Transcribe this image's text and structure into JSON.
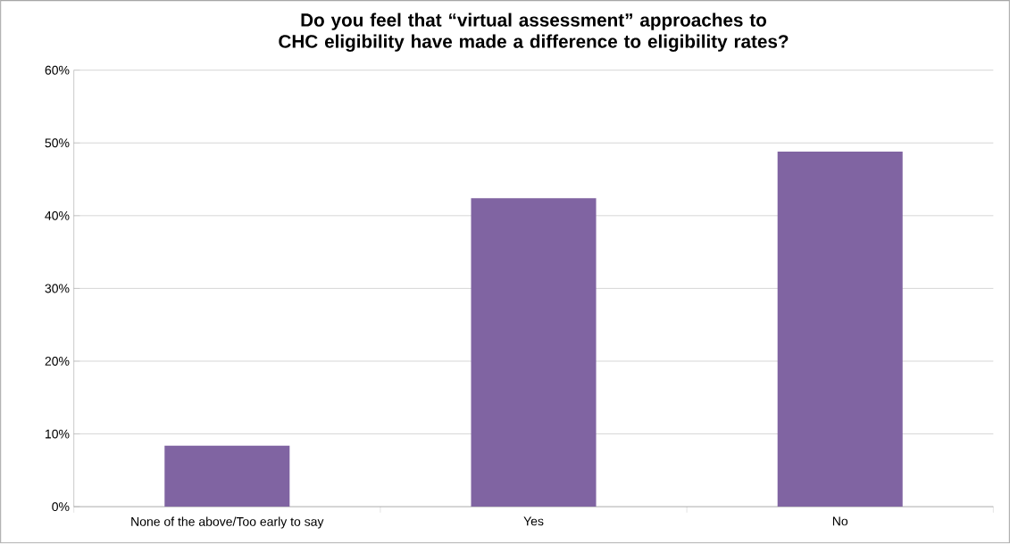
{
  "chart_data": {
    "type": "bar",
    "title": "Do you feel that “virtual assessment” approaches to CHC eligibility have made a difference to eligibility rates?",
    "categories": [
      "None of the above/Too early to say",
      "Yes",
      "No"
    ],
    "values": [
      8.4,
      42.4,
      48.8
    ],
    "color": "#8064a2",
    "ylim": [
      0,
      60
    ],
    "yticks": [
      {
        "value": 0,
        "label": "0%"
      },
      {
        "value": 10,
        "label": "10%"
      },
      {
        "value": 20,
        "label": "20%"
      },
      {
        "value": 30,
        "label": "30%"
      },
      {
        "value": 40,
        "label": "40%"
      },
      {
        "value": 50,
        "label": "50%"
      },
      {
        "value": 60,
        "label": "60%"
      }
    ],
    "grid": "y"
  }
}
